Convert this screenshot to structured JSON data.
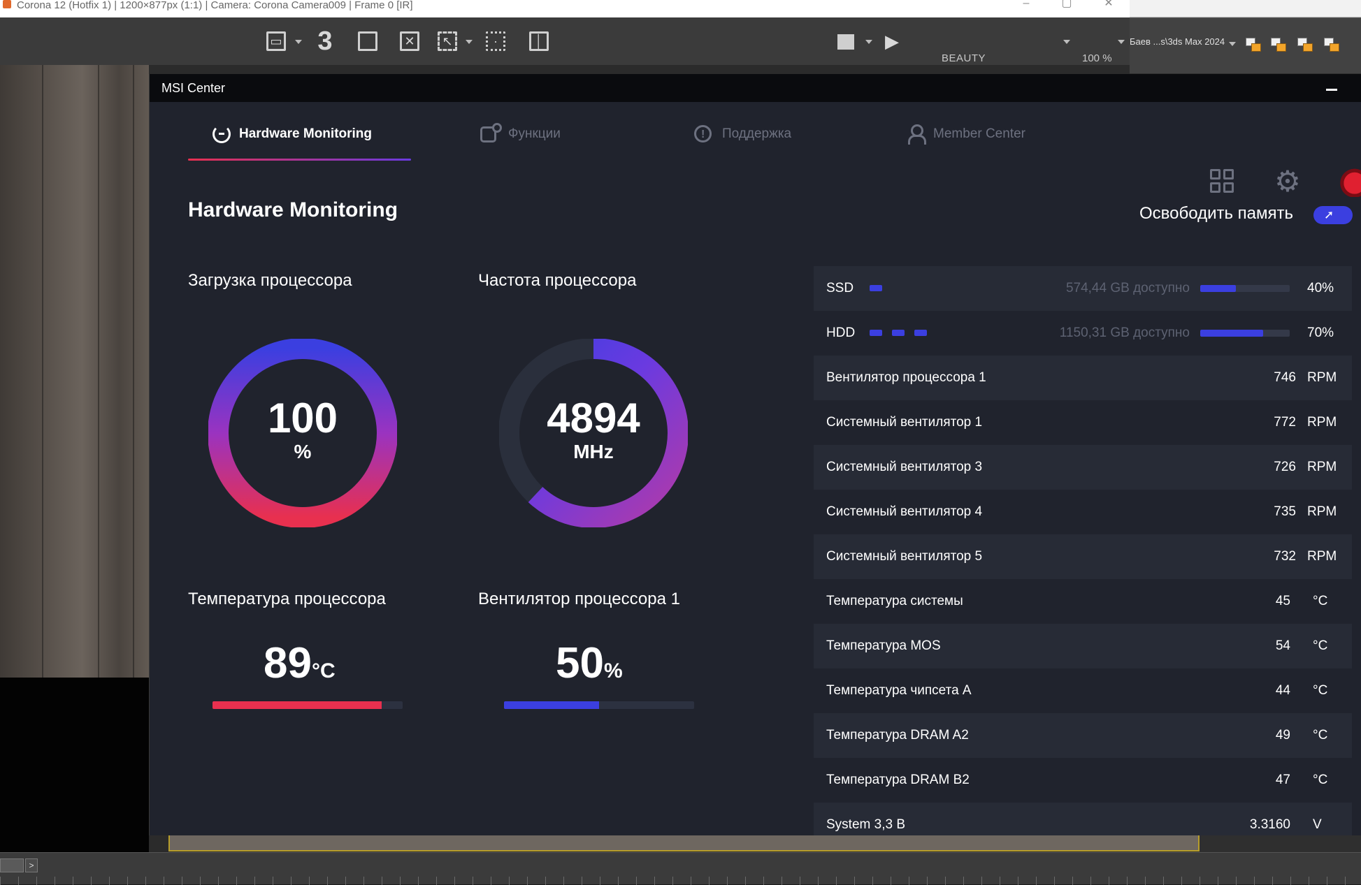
{
  "background": {
    "vfb_title": "Corona 12 (Hotfix 1) | 1200×877px (1:1) | Camera: Corona Camera009 | Frame 0 [IR]",
    "toolbar_number": "3",
    "render_element": "BEAUTY",
    "zoom": "100 %",
    "max_path": "Баев ...s\\3ds Max 2024",
    "timeline_next": ">"
  },
  "msi": {
    "window_title": "MSI Center",
    "tabs": [
      {
        "label": "Hardware Monitoring",
        "icon": "monitor-icon",
        "active": true
      },
      {
        "label": "Функции",
        "icon": "functions-icon",
        "active": false
      },
      {
        "label": "Поддержка",
        "icon": "support-icon",
        "active": false
      },
      {
        "label": "Member Center",
        "icon": "member-icon",
        "active": false
      }
    ],
    "page_title": "Hardware Monitoring",
    "free_memory_label": "Освободить память",
    "colors": {
      "accent_blue": "#3b3fe0",
      "accent_red": "#e8304f",
      "accent_purple": "#9a33c0"
    },
    "cpu_load": {
      "title": "Загрузка процессора",
      "value": "100",
      "unit": "%",
      "fraction": 1.0
    },
    "cpu_freq": {
      "title": "Частота процессора",
      "value": "4894",
      "unit": "MHz",
      "fraction": 0.62
    },
    "cpu_temp": {
      "title": "Температура процессора",
      "value": "89",
      "unit": "°C",
      "fraction": 0.89
    },
    "cpu_fan": {
      "title": "Вентилятор процессора 1",
      "value": "50",
      "unit": "%",
      "fraction": 0.5
    },
    "disks": [
      {
        "name": "SSD",
        "chips": 1,
        "available": "574,44 GB доступно",
        "percent": "40%",
        "fraction": 0.4
      },
      {
        "name": "HDD",
        "chips": 3,
        "available": "1150,31 GB доступно",
        "percent": "70%",
        "fraction": 0.7
      }
    ],
    "sensors": [
      {
        "label": "Вентилятор процессора 1",
        "value": "746",
        "unit": "RPM"
      },
      {
        "label": "Системный вентилятор 1",
        "value": "772",
        "unit": "RPM"
      },
      {
        "label": "Системный вентилятор 3",
        "value": "726",
        "unit": "RPM"
      },
      {
        "label": "Системный вентилятор 4",
        "value": "735",
        "unit": "RPM"
      },
      {
        "label": "Системный вентилятор 5",
        "value": "732",
        "unit": "RPM"
      },
      {
        "label": "Температура системы",
        "value": "45",
        "unit": "°C"
      },
      {
        "label": "Температура MOS",
        "value": "54",
        "unit": "°C"
      },
      {
        "label": "Температура чипсета A",
        "value": "44",
        "unit": "°C"
      },
      {
        "label": "Температура DRAM A2",
        "value": "49",
        "unit": "°C"
      },
      {
        "label": "Температура DRAM B2",
        "value": "47",
        "unit": "°C"
      },
      {
        "label": "System 3,3 B",
        "value": "3.3160",
        "unit": "V"
      }
    ]
  }
}
